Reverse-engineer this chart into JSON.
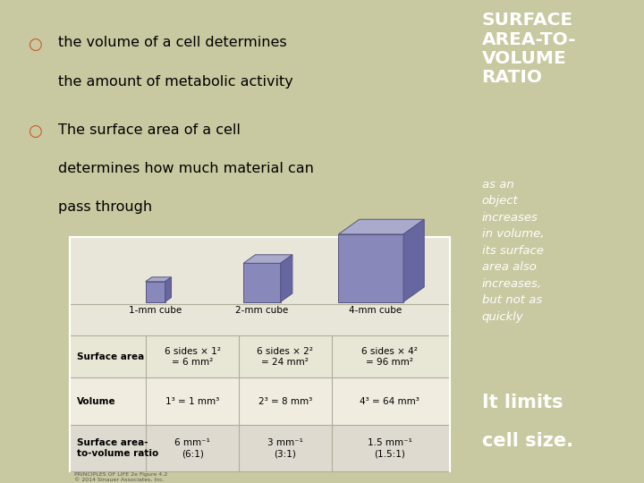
{
  "bg_left": "#c8c9a0",
  "bg_right": "#b85c3a",
  "bullet_color": "#c8522a",
  "bullet1_line1": "the volume of a cell determines",
  "bullet1_line2": "the amount of metabolic activity",
  "bullet2_line1": "The surface area of a cell",
  "bullet2_line2": "determines how much material can",
  "bullet2_line3": "pass through",
  "right_title": "SURFACE\nAREA-TO-\nVOLUME\nRATIO",
  "right_italic": "as an\nobject\nincreases\nin volume,\nits surface\narea also\nincreases,\nbut not as\nquickly",
  "right_bottom1": "It limits",
  "right_bottom2": "cell size.",
  "table_bg": "#e8e6d8",
  "cube_color": "#8888bb",
  "cube_top_color": "#aaaacc",
  "cube_right_color": "#6666a0",
  "cube_edge_color": "#555580",
  "col_labels": [
    "1-mm cube",
    "2-mm cube",
    "4-mm cube"
  ],
  "cell_data": [
    [
      "6 sides × 1²\n= 6 mm²",
      "6 sides × 2²\n= 24 mm²",
      "6 sides × 4²\n= 96 mm²"
    ],
    [
      "1³ = 1 mm³",
      "2³ = 8 mm³",
      "4³ = 64 mm³"
    ],
    [
      "6 mm⁻¹\n(6:1)",
      "3 mm⁻¹\n(3:1)",
      "1.5 mm⁻¹\n(1.5:1)"
    ]
  ],
  "row_labels": [
    "Surface area",
    "Volume",
    "Surface area-\nto-volume ratio"
  ],
  "caption": "PRINCIPLES OF LIFE 2e Figure 4.2\n© 2014 Sinauer Associates, Inc.",
  "line_color": "#b0ad9a",
  "row_bg_colors": [
    "#e8e6d5",
    "#f0ede0",
    "#dedad0"
  ]
}
